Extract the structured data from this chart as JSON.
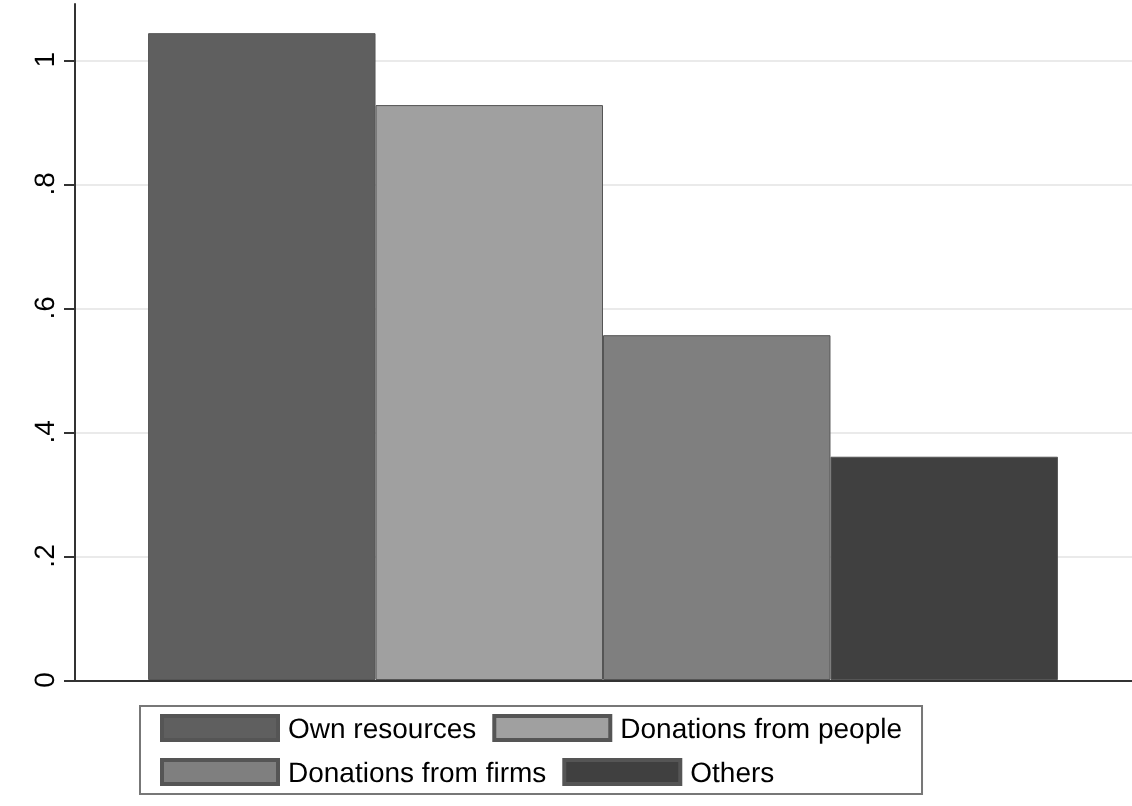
{
  "chart_data": {
    "type": "bar",
    "categories": [
      null
    ],
    "series": [
      {
        "name": "Own resources",
        "color": "#5f5f5f",
        "values": [
          1.043
        ]
      },
      {
        "name": "Donations from people",
        "color": "#a0a0a0",
        "values": [
          0.927
        ]
      },
      {
        "name": "Donations from firms",
        "color": "#7f7f7f",
        "values": [
          0.556
        ]
      },
      {
        "name": "Others",
        "color": "#404040",
        "values": [
          0.36
        ]
      }
    ],
    "ylim": [
      0,
      1.09
    ],
    "yticks": [
      0,
      {
        "value": 0.2,
        "label": ".2"
      },
      {
        "value": 0.4,
        "label": ".4"
      },
      {
        "value": 0.6,
        "label": ".6"
      },
      {
        "value": 0.8,
        "label": ".8"
      },
      1
    ],
    "grid": "y",
    "legend": "bottom"
  }
}
